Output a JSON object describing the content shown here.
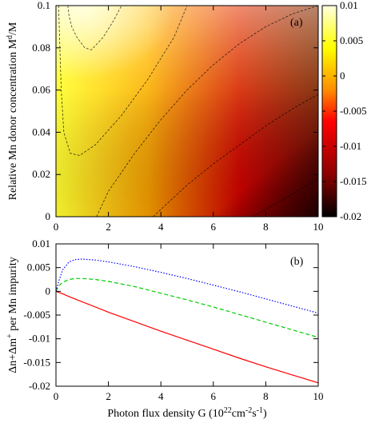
{
  "chart_data": [
    {
      "panel": "(a)",
      "type": "heatmap",
      "ylabel_main": "Relative Mn donor concentration M",
      "ylabel_sup": "d",
      "ylabel_tail": "/M",
      "xlim": [
        0,
        10
      ],
      "ylim": [
        0,
        0.1
      ],
      "xticks": [
        "0",
        "2",
        "4",
        "6",
        "8",
        "10"
      ],
      "yticks": [
        "0",
        "0.02",
        "0.04",
        "0.06",
        "0.08",
        "0.1"
      ],
      "colorbar": {
        "range": [
          -0.02,
          0.01
        ],
        "ticks": [
          "0.01",
          "0.005",
          "0",
          "-0.005",
          "-0.01",
          "-0.015",
          "-0.02"
        ],
        "colormap": [
          "#000000",
          "#8b0000",
          "#ff0000",
          "#ff8c00",
          "#ffff00",
          "#ffffe0"
        ]
      },
      "contours": [
        {
          "level": 0.005,
          "points": [
            [
              0.45,
              0.1
            ],
            [
              0.5,
              0.095
            ],
            [
              0.6,
              0.09
            ],
            [
              0.8,
              0.085
            ],
            [
              1.1,
              0.08
            ],
            [
              1.35,
              0.079
            ],
            [
              1.8,
              0.085
            ],
            [
              2.2,
              0.093
            ],
            [
              2.5,
              0.1
            ]
          ]
        },
        {
          "level": 0.0,
          "points": [
            [
              0.1,
              0.1
            ],
            [
              0.15,
              0.08
            ],
            [
              0.2,
              0.06
            ],
            [
              0.3,
              0.04
            ],
            [
              0.55,
              0.03
            ],
            [
              0.9,
              0.029
            ],
            [
              1.5,
              0.034
            ],
            [
              2.5,
              0.048
            ],
            [
              3.5,
              0.065
            ],
            [
              4.5,
              0.085
            ],
            [
              5.0,
              0.1
            ]
          ]
        },
        {
          "level": -0.005,
          "points": [
            [
              1.55,
              0
            ],
            [
              2.0,
              0.012
            ],
            [
              3.0,
              0.03
            ],
            [
              4.0,
              0.046
            ],
            [
              5.0,
              0.06
            ],
            [
              6.0,
              0.072
            ],
            [
              7.0,
              0.082
            ],
            [
              8.0,
              0.09
            ],
            [
              9.0,
              0.096
            ],
            [
              10.0,
              0.1
            ]
          ]
        },
        {
          "level": -0.01,
          "points": [
            [
              3.7,
              0
            ],
            [
              5.0,
              0.015
            ],
            [
              6.0,
              0.025
            ],
            [
              7.0,
              0.034
            ],
            [
              8.0,
              0.043
            ],
            [
              9.0,
              0.051
            ],
            [
              10.0,
              0.058
            ]
          ]
        },
        {
          "level": -0.015,
          "points": [
            [
              7.5,
              0
            ],
            [
              8.5,
              0.007
            ],
            [
              10.0,
              0.018
            ]
          ]
        }
      ]
    },
    {
      "panel": "(b)",
      "type": "line",
      "xlabel_pre": "Photon flux density G (10",
      "xlabel_sup1": "22",
      "xlabel_mid": "cm",
      "xlabel_sup2": "-2",
      "xlabel_mid2": "s",
      "xlabel_sup3": "-1",
      "xlabel_post": ")",
      "ylabel_pre": "Δn+Δm",
      "ylabel_sup": "+",
      "ylabel_post": " per Mn impurity",
      "xlim": [
        0,
        10
      ],
      "ylim": [
        -0.02,
        0.01
      ],
      "xticks": [
        "0",
        "2",
        "4",
        "6",
        "8",
        "10"
      ],
      "yticks": [
        "0.01",
        "0.005",
        "0",
        "-0.005",
        "-0.01",
        "-0.015",
        "-0.02"
      ],
      "series": [
        {
          "color": "#ff0000",
          "dash": "solid",
          "x": [
            0,
            0.25,
            0.5,
            1,
            2,
            3,
            4,
            5,
            6,
            7,
            8,
            9,
            10
          ],
          "y": [
            0,
            -0.0005,
            -0.0011,
            -0.0022,
            -0.0044,
            -0.0064,
            -0.0084,
            -0.0103,
            -0.0122,
            -0.0141,
            -0.0159,
            -0.0176,
            -0.0193
          ]
        },
        {
          "color": "#00cc00",
          "dash": "dashed",
          "x": [
            0,
            0.1,
            0.25,
            0.5,
            0.75,
            1,
            1.5,
            2,
            3,
            4,
            5,
            6,
            7,
            8,
            9,
            10
          ],
          "y": [
            0,
            0.0011,
            0.0019,
            0.0025,
            0.0027,
            0.0027,
            0.0025,
            0.0021,
            0.001,
            -0.0004,
            -0.0018,
            -0.0033,
            -0.0049,
            -0.0065,
            -0.0081,
            -0.0097
          ]
        },
        {
          "color": "#0000ff",
          "dash": "dotted",
          "x": [
            0,
            0.1,
            0.25,
            0.5,
            0.75,
            1,
            1.5,
            2,
            3,
            4,
            5,
            6,
            7,
            8,
            9,
            10
          ],
          "y": [
            0,
            0.002,
            0.0045,
            0.0062,
            0.0067,
            0.0068,
            0.0066,
            0.0062,
            0.0052,
            0.004,
            0.0027,
            0.0013,
            -0.0001,
            -0.0016,
            -0.0031,
            -0.0046
          ]
        }
      ]
    }
  ]
}
